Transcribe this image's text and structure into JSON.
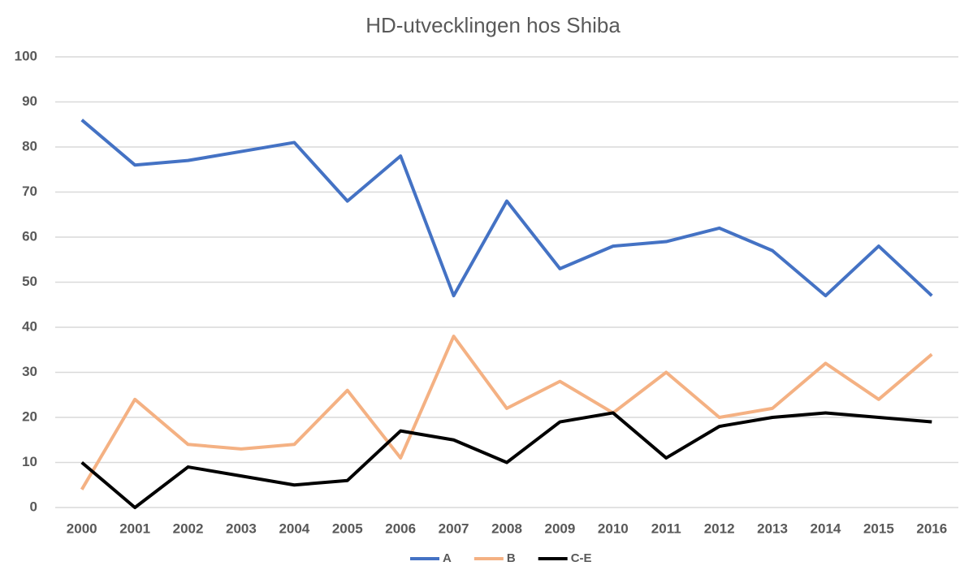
{
  "chart_data": {
    "type": "line",
    "title": "HD-utvecklingen hos Shiba",
    "categories": [
      "2000",
      "2001",
      "2002",
      "2003",
      "2004",
      "2005",
      "2006",
      "2007",
      "2008",
      "2009",
      "2010",
      "2011",
      "2012",
      "2013",
      "2014",
      "2015",
      "2016"
    ],
    "series": [
      {
        "name": "A",
        "color": "#4472c4",
        "values": [
          86,
          76,
          77,
          79,
          81,
          68,
          78,
          47,
          68,
          53,
          58,
          59,
          62,
          57,
          47,
          58,
          47
        ]
      },
      {
        "name": "B",
        "color": "#f4b183",
        "values": [
          4,
          24,
          14,
          13,
          14,
          26,
          11,
          38,
          22,
          28,
          21,
          30,
          20,
          22,
          32,
          24,
          34
        ]
      },
      {
        "name": "C-E",
        "color": "#000000",
        "values": [
          10,
          0,
          9,
          7,
          5,
          6,
          17,
          15,
          10,
          19,
          21,
          11,
          18,
          20,
          21,
          20,
          19
        ]
      }
    ],
    "ylim": [
      0,
      100
    ],
    "yticks": [
      0,
      10,
      20,
      30,
      40,
      50,
      60,
      70,
      80,
      90,
      100
    ],
    "grid": true,
    "legend": "bottom"
  }
}
